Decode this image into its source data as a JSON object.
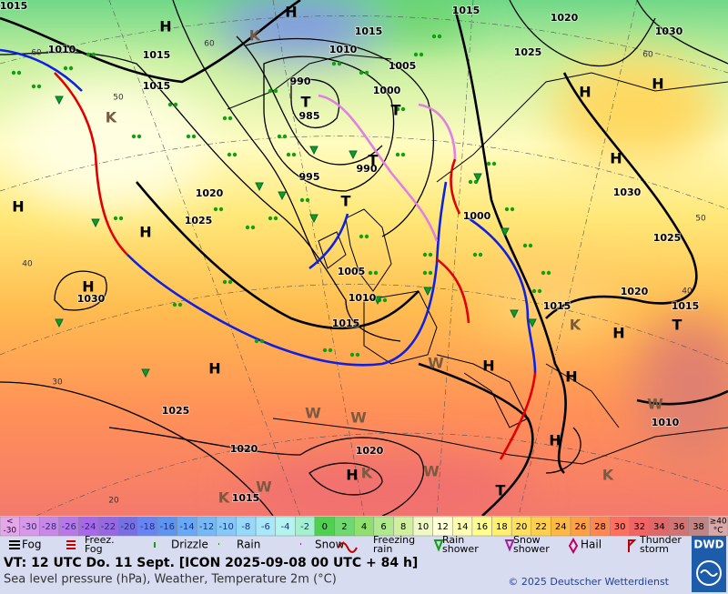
{
  "map": {
    "isobar_labels": [
      "1015",
      "1010",
      "1015",
      "1015",
      "1015",
      "1010",
      "1005",
      "1000",
      "990",
      "985",
      "990",
      "995",
      "1020",
      "1025",
      "1030",
      "1005",
      "1010",
      "1015",
      "1000",
      "1015",
      "1020",
      "1025",
      "1030",
      "1030",
      "1020",
      "1025",
      "1015",
      "1025",
      "1020",
      "1020",
      "1015",
      "1010",
      "1015"
    ],
    "centers": [
      "H",
      "H",
      "H",
      "H",
      "H",
      "H",
      "H",
      "H",
      "H",
      "H",
      "H",
      "H",
      "H",
      "H",
      "T",
      "T",
      "T",
      "T",
      "T",
      "T",
      "K",
      "K",
      "K",
      "K",
      "K",
      "K",
      "W",
      "W",
      "W",
      "W",
      "W",
      "W"
    ],
    "latitude_labels": [
      "60",
      "60",
      "50",
      "40",
      "30",
      "20",
      "60",
      "40",
      "50"
    ]
  },
  "scale": {
    "low": {
      "top": "<",
      "bottom": "-30",
      "color": "#e4a8e8"
    },
    "cells": [
      {
        "label": "-30",
        "color": "#d898e8"
      },
      {
        "label": "-28",
        "color": "#c888e8"
      },
      {
        "label": "-26",
        "color": "#b878e8"
      },
      {
        "label": "-24",
        "color": "#a868e8"
      },
      {
        "label": "-22",
        "color": "#9868e0"
      },
      {
        "label": "-20",
        "color": "#7870e0"
      },
      {
        "label": "-18",
        "color": "#6884f0"
      },
      {
        "label": "-16",
        "color": "#5c94f0"
      },
      {
        "label": "-14",
        "color": "#68a8f4"
      },
      {
        "label": "-12",
        "color": "#78b8f4"
      },
      {
        "label": "-10",
        "color": "#88c8f8"
      },
      {
        "label": "-8",
        "color": "#98d8f8"
      },
      {
        "label": "-6",
        "color": "#a8e8f8"
      },
      {
        "label": "-4",
        "color": "#b4f4f0"
      },
      {
        "label": "-2",
        "color": "#a4f0d0"
      },
      {
        "label": "0",
        "color": "#50d050"
      },
      {
        "label": "2",
        "color": "#70d870"
      },
      {
        "label": "4",
        "color": "#90e070"
      },
      {
        "label": "6",
        "color": "#b0e890"
      },
      {
        "label": "8",
        "color": "#d0f0a0"
      },
      {
        "label": "10",
        "color": "#f0f8c8"
      },
      {
        "label": "12",
        "color": "#ffffd8"
      },
      {
        "label": "14",
        "color": "#ffffb4"
      },
      {
        "label": "16",
        "color": "#ffff90"
      },
      {
        "label": "18",
        "color": "#fff070"
      },
      {
        "label": "20",
        "color": "#ffe060"
      },
      {
        "label": "22",
        "color": "#ffd050"
      },
      {
        "label": "24",
        "color": "#ffb844"
      },
      {
        "label": "26",
        "color": "#ffa044"
      },
      {
        "label": "28",
        "color": "#ff8850"
      },
      {
        "label": "30",
        "color": "#ff7060"
      },
      {
        "label": "32",
        "color": "#f06464"
      },
      {
        "label": "34",
        "color": "#e06868"
      },
      {
        "label": "36",
        "color": "#d07474"
      },
      {
        "label": "38",
        "color": "#c08484"
      }
    ],
    "high": {
      "top": "≥40",
      "bottom": "°C",
      "color": "#d8a8a8"
    }
  },
  "legend": [
    [
      "Fog"
    ],
    [
      "Freez.",
      "Fog"
    ],
    [
      "Drizzle"
    ],
    [
      "Rain"
    ],
    [
      "Snow"
    ],
    [
      "Freezing",
      "rain"
    ],
    [
      "Rain",
      "shower"
    ],
    [
      "Snow",
      "shower"
    ],
    [
      "Hail"
    ],
    [
      "Thunder",
      "storm"
    ]
  ],
  "footer": {
    "valid_time": "VT: 12 UTC Do.  11 Sept. [ICON 2025-09-08  00 UTC + 84 h]",
    "description": "Sea level pressure (hPa), Weather, Temperature 2m (°C)",
    "copyright": "© 2025 Deutscher Wetterdienst",
    "logo": "DWD"
  }
}
